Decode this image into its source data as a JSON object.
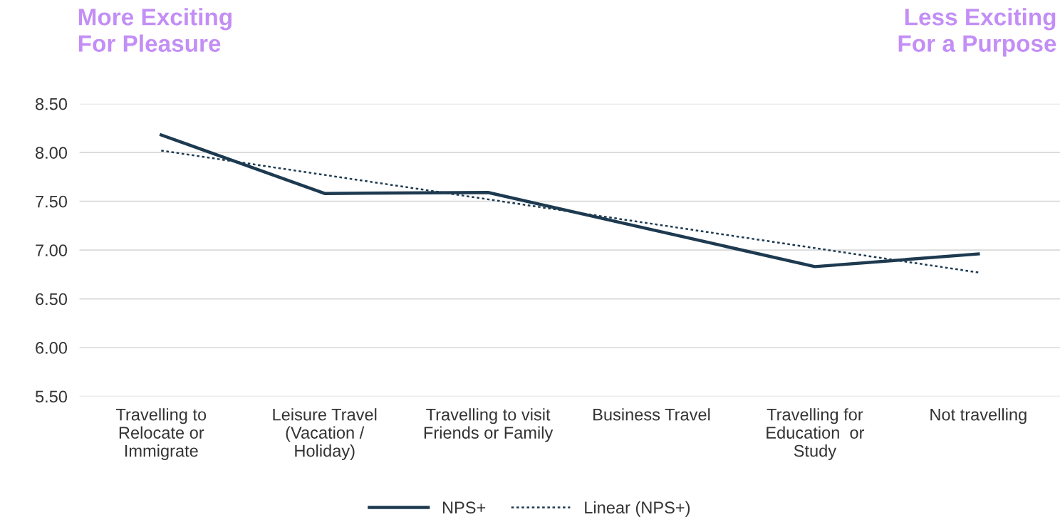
{
  "chart_data": {
    "type": "line",
    "categories": [
      "Travelling to\nRelocate or\nImmigrate",
      "Leisure Travel\n(Vacation /\nHoliday)",
      "Travelling to visit\nFriends or Family",
      "Business Travel",
      "Travelling for\nEducation  or\nStudy",
      "Not travelling"
    ],
    "series": [
      {
        "name": "NPS+",
        "color": "#1d3a50",
        "values": [
          8.18,
          7.58,
          7.59,
          7.21,
          6.83,
          6.96
        ],
        "line_style": "solid"
      },
      {
        "name": "Linear (NPS+)",
        "color": "#1d3a50",
        "values": [
          8.02,
          7.77,
          7.52,
          7.27,
          7.02,
          6.77
        ],
        "line_style": "dotted"
      }
    ],
    "ylim": [
      5.5,
      8.5
    ],
    "yticks": [
      {
        "value": 5.5,
        "label": "5.50"
      },
      {
        "value": 6.0,
        "label": "6.00"
      },
      {
        "value": 6.5,
        "label": "6.50"
      },
      {
        "value": 7.0,
        "label": "7.00"
      },
      {
        "value": 7.5,
        "label": "7.50"
      },
      {
        "value": 8.0,
        "label": "8.00"
      },
      {
        "value": 8.5,
        "label": "8.50"
      }
    ],
    "grid": "y",
    "legend": "bottom",
    "marker": "none",
    "annotations": [
      "More Exciting\nFor Pleasure",
      "Less Exciting\nFor a Purpose"
    ]
  }
}
